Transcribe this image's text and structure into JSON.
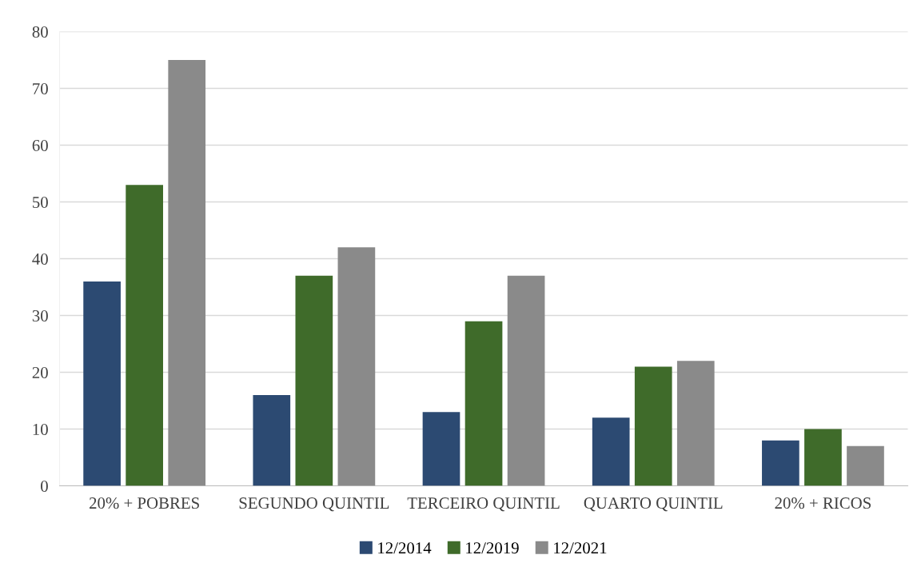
{
  "chart_data": {
    "type": "bar",
    "categories": [
      "20% + POBRES",
      "SEGUNDO QUINTIL",
      "TERCEIRO QUINTIL",
      "QUARTO QUINTIL",
      "20% + RICOS"
    ],
    "series": [
      {
        "name": "12/2014",
        "color": "#2c4a72",
        "values": [
          36,
          16,
          13,
          12,
          8
        ]
      },
      {
        "name": "12/2019",
        "color": "#3f6b2a",
        "values": [
          53,
          37,
          29,
          21,
          10
        ]
      },
      {
        "name": "12/2021",
        "color": "#8a8a8a",
        "values": [
          75,
          42,
          37,
          22,
          7
        ]
      }
    ],
    "ylim": [
      0,
      80
    ],
    "yticks": [
      0,
      10,
      20,
      30,
      40,
      50,
      60,
      70,
      80
    ],
    "grid": "y",
    "legend": "bottom"
  }
}
